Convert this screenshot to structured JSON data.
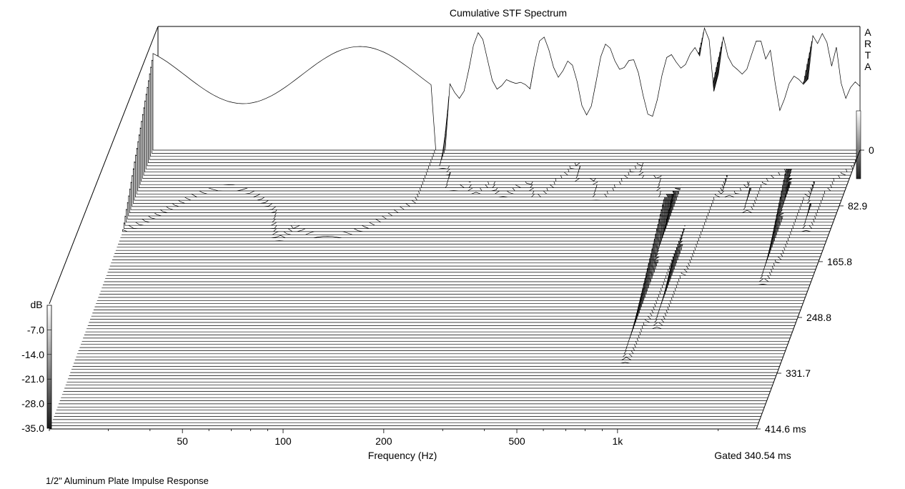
{
  "chart_data": {
    "type": "waterfall",
    "title": "Cumulative STF Spectrum",
    "watermark": "ARTA",
    "xlabel": "Frequency (Hz)",
    "x_ticks": [
      "50",
      "100",
      "200",
      "500",
      "1k"
    ],
    "x_scale": "log",
    "x_range_hz": [
      20,
      2600
    ],
    "z_label_unit": "ms",
    "z_ticks": [
      "0",
      "82.9",
      "165.8",
      "248.8",
      "331.7",
      "414.6 ms"
    ],
    "z_range_ms": [
      0,
      414.6
    ],
    "ylabel": "dB",
    "y_ticks": [
      "-7.0",
      "-14.0",
      "-21.0",
      "-28.0",
      "-35.0"
    ],
    "y_range_db": [
      -35,
      0
    ],
    "gate_note": "Gated 340.54 ms",
    "caption": "1/2\" Aluminum Plate Impulse Response",
    "colors": {
      "line": "#000000",
      "fill": "#ffffff",
      "shade": "#9a9a9a"
    },
    "series_description_slices": 90,
    "peaks": [
      {
        "freq_hz": 900,
        "level_db": 0,
        "decay_ms": 340
      },
      {
        "freq_hz": 1020,
        "level_db": -3,
        "decay_ms": 300
      },
      {
        "freq_hz": 1900,
        "level_db": -2,
        "decay_ms": 230
      },
      {
        "freq_hz": 1400,
        "level_db": -7,
        "decay_ms": 120
      },
      {
        "freq_hz": 2200,
        "level_db": -6,
        "decay_ms": 150
      },
      {
        "freq_hz": 350,
        "level_db": -10,
        "decay_ms": 60
      },
      {
        "freq_hz": 250,
        "level_db": -16,
        "decay_ms": 130
      },
      {
        "freq_hz": 60,
        "level_db": -18,
        "decay_ms": 280
      }
    ]
  }
}
